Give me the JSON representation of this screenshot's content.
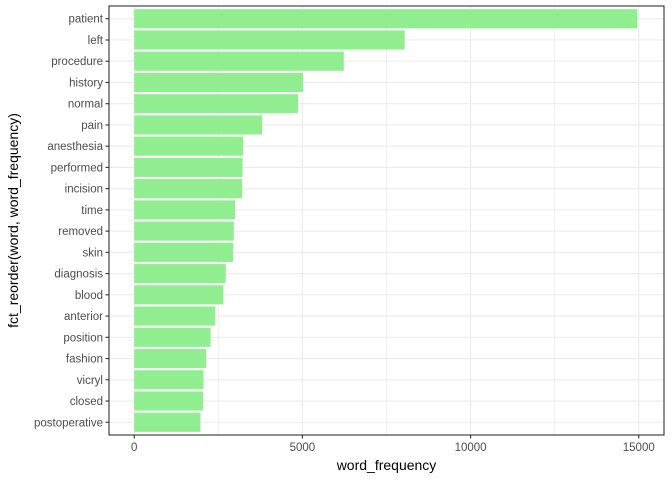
{
  "chart_data": {
    "type": "bar",
    "orientation": "horizontal",
    "categories": [
      "patient",
      "left",
      "procedure",
      "history",
      "normal",
      "pain",
      "anesthesia",
      "performed",
      "incision",
      "time",
      "removed",
      "skin",
      "diagnosis",
      "blood",
      "anterior",
      "position",
      "fashion",
      "vicryl",
      "closed",
      "postoperative"
    ],
    "values": [
      14960,
      8040,
      6230,
      5020,
      4870,
      3800,
      3240,
      3220,
      3210,
      3000,
      2960,
      2940,
      2720,
      2650,
      2410,
      2270,
      2140,
      2060,
      2050,
      1970
    ],
    "xlabel": "word_frequency",
    "ylabel": "fct_reorder(word, word_frequency)",
    "xticks": [
      0,
      5000,
      10000,
      15000
    ],
    "xtick_labels": [
      "0",
      "5000",
      "10000",
      "15000"
    ],
    "xlim": [
      -750,
      15750
    ],
    "grid": true,
    "bar_color": "#90ee90",
    "panel_background": "#ffffff",
    "grid_color": "#ebebeb",
    "panel_border_color": "#333333"
  }
}
